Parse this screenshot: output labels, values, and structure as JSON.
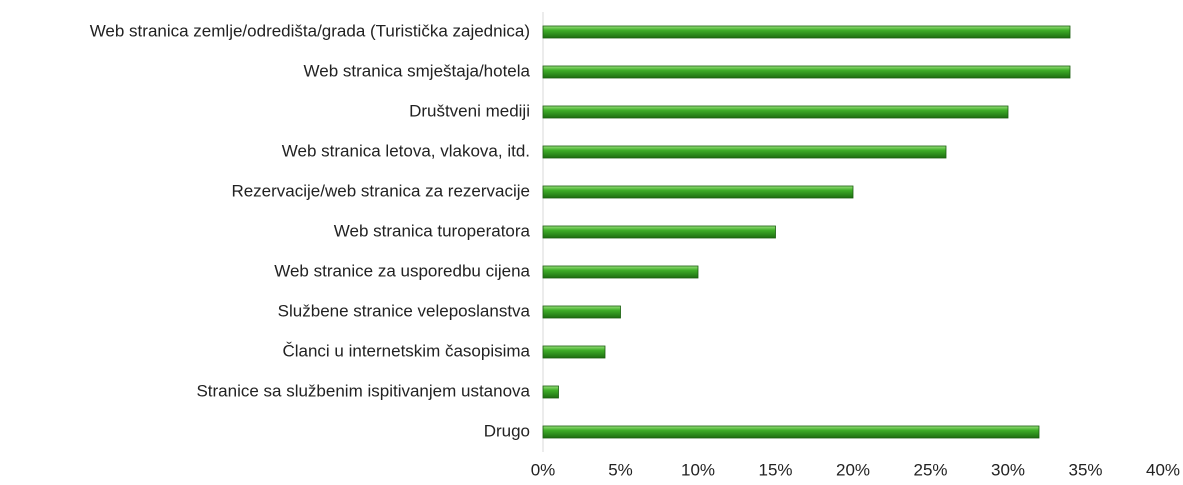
{
  "chart_data": {
    "type": "bar",
    "orientation": "horizontal",
    "categories": [
      "Web stranica zemlje/odredišta/grada (Turistička zajednica)",
      "Web stranica smještaja/hotela",
      "Društveni mediji",
      "Web stranica letova, vlakova, itd.",
      "Rezervacije/web stranica za rezervacije",
      "Web stranica turoperatora",
      "Web stranice za usporedbu cijena",
      "Službene stranice veleposlanstva",
      "Članci u internetskim časopisima",
      "Stranice sa službenim ispitivanjem ustanova",
      "Drugo"
    ],
    "values": [
      34,
      34,
      30,
      26,
      20,
      15,
      10,
      5,
      4,
      1,
      32
    ],
    "color": "#2f9a1c",
    "xlim": [
      0,
      40
    ],
    "xticks": [
      {
        "value": 0,
        "label": "0%"
      },
      {
        "value": 5,
        "label": "5%"
      },
      {
        "value": 10,
        "label": "10%"
      },
      {
        "value": 15,
        "label": "15%"
      },
      {
        "value": 20,
        "label": "20%"
      },
      {
        "value": 25,
        "label": "25%"
      },
      {
        "value": 30,
        "label": "30%"
      },
      {
        "value": 35,
        "label": "35%"
      },
      {
        "value": 40,
        "label": "40%"
      }
    ],
    "grid": false
  }
}
